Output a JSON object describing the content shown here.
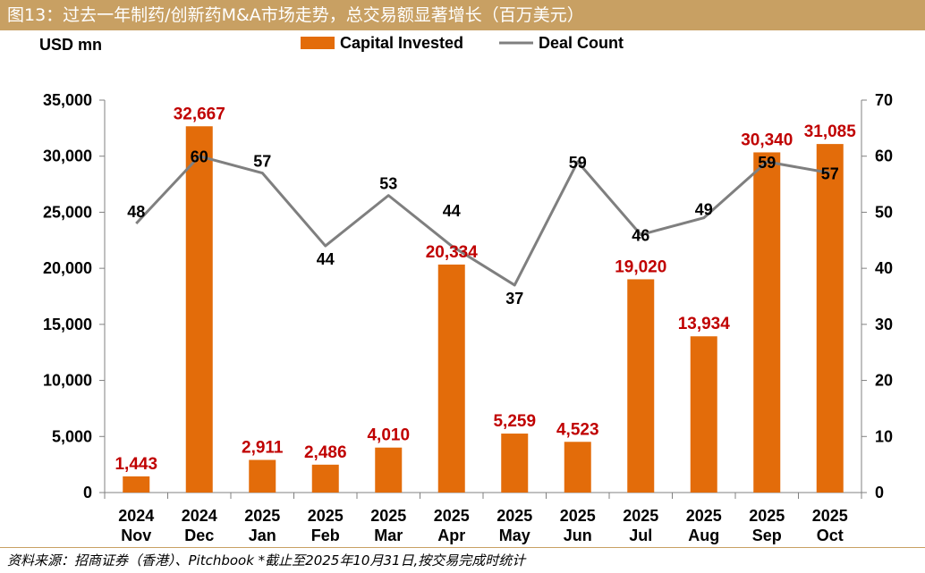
{
  "title": "图13：过去一年制药/创新药M&A市场走势，总交易额显著增长（百万美元）",
  "source": "资料来源：招商证券（香港）、Pitchbook *截止至2025年10月31日,按交易完成时统计",
  "chart_data": {
    "type": "bar",
    "categories": [
      [
        "2024",
        "Nov"
      ],
      [
        "2024",
        "Dec"
      ],
      [
        "2025",
        "Jan"
      ],
      [
        "2025",
        "Feb"
      ],
      [
        "2025",
        "Mar"
      ],
      [
        "2025",
        "Apr"
      ],
      [
        "2025",
        "May"
      ],
      [
        "2025",
        "Jun"
      ],
      [
        "2025",
        "Jul"
      ],
      [
        "2025",
        "Aug"
      ],
      [
        "2025",
        "Sep"
      ],
      [
        "2025",
        "Oct"
      ]
    ],
    "y_unit_label": "USD mn",
    "series": [
      {
        "name": "Capital Invested",
        "type": "bar",
        "axis": "left",
        "values": [
          1443,
          32667,
          2911,
          2486,
          4010,
          20334,
          5259,
          4523,
          19020,
          13934,
          30340,
          31085
        ],
        "labels": [
          "1,443",
          "32,667",
          "2,911",
          "2,486",
          "4,010",
          "20,334",
          "5,259",
          "4,523",
          "19,020",
          "13,934",
          "30,340",
          "31,085"
        ]
      },
      {
        "name": "Deal Count",
        "type": "line",
        "axis": "right",
        "values": [
          48,
          60,
          57,
          44,
          53,
          44,
          37,
          59,
          46,
          49,
          59,
          57
        ],
        "labels": [
          "48",
          "60",
          "57",
          "44",
          "53",
          "44",
          "37",
          "59",
          "46",
          "49",
          "59",
          "57"
        ]
      }
    ],
    "y_left": {
      "min": 0,
      "max": 35000,
      "ticks": [
        "0",
        "5,000",
        "10,000",
        "15,000",
        "20,000",
        "25,000",
        "30,000",
        "35,000"
      ]
    },
    "y_right": {
      "min": 0,
      "max": 70,
      "ticks": [
        "0",
        "10",
        "20",
        "30",
        "40",
        "50",
        "60",
        "70"
      ]
    },
    "legend": "top-center",
    "grid": false,
    "colors": {
      "bar": "#e36c0a",
      "line": "#7f7f7f",
      "bar_label": "#c00000",
      "line_label": "#000000"
    }
  }
}
